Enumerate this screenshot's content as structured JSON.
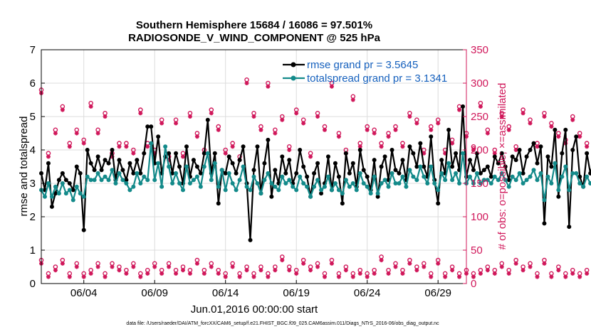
{
  "chart_data": {
    "type": "line",
    "title": "Southern Hemisphere 15684 / 16086 = 97.501%",
    "subtitle": "RADIOSONDE_V_WIND_COMPONENT @ 525 hPa",
    "xlabel": "Jun.01,2016 00:00:00 start",
    "ylabel": "rmse and totalspread",
    "ylabel_right": "# of obs: o=possible; ×=assimilated",
    "footnote": "data file: /Users/raeder/DAI/ATM_forcXX/CAM6_setup/f.e21.FHIST_BGC.f09_025.CAM6assim.011/Diags_NTrS_2016-06/obs_diag_output.nc",
    "x_start": 1,
    "x_step": 0.25,
    "xlim": [
      1,
      31
    ],
    "ylim": [
      0,
      7
    ],
    "y2lim": [
      0,
      350
    ],
    "x_ticks": [
      4,
      9,
      14,
      19,
      24,
      29
    ],
    "x_tick_labels": [
      "06/04",
      "06/09",
      "06/14",
      "06/19",
      "06/24",
      "06/29"
    ],
    "y_ticks": [
      "0",
      "1",
      "2",
      "3",
      "4",
      "5",
      "6",
      "7"
    ],
    "y2_ticks": [
      "0",
      "50",
      "100",
      "150",
      "200",
      "250",
      "300",
      "350"
    ],
    "grid": true,
    "legend_position": "top-right",
    "colors": {
      "rmse": "#000000",
      "spread": "#138a8a",
      "obs": "#d0175a",
      "legend_text": "#1560bd",
      "axis_right": "#d0175a"
    },
    "series": [
      {
        "name": "rmse grand pr = 3.5645",
        "values": [
          3.3,
          2.8,
          3.6,
          2.3,
          2.7,
          3.1,
          3.3,
          3.1,
          3.0,
          2.8,
          3.5,
          3.3,
          1.6,
          4.0,
          3.6,
          3.4,
          3.8,
          3.4,
          3.7,
          3.6,
          4.0,
          3.1,
          3.7,
          3.4,
          3.1,
          3.6,
          3.3,
          3.7,
          3.3,
          3.9,
          4.7,
          4.7,
          3.6,
          4.4,
          3.3,
          3.8,
          3.9,
          3.3,
          3.9,
          3.5,
          3.0,
          4.1,
          3.2,
          3.7,
          3.5,
          3.3,
          3.9,
          4.9,
          3.3,
          3.9,
          2.4,
          3.4,
          3.3,
          3.8,
          3.6,
          3.3,
          3.7,
          4.1,
          3.0,
          1.3,
          3.4,
          4.1,
          2.7,
          3.6,
          4.3,
          2.6,
          3.4,
          3.0,
          3.8,
          3.3,
          3.7,
          3.0,
          3.3,
          4.0,
          3.5,
          3.2,
          2.6,
          3.3,
          3.6,
          2.7,
          3.0,
          3.8,
          2.8,
          3.6,
          3.2,
          2.4,
          3.9,
          3.3,
          3.6,
          2.9,
          4.0,
          3.4,
          3.2,
          2.8,
          3.7,
          2.6,
          3.5,
          3.8,
          3.1,
          4.0,
          3.4,
          3.3,
          3.7,
          3.1,
          4.1,
          3.9,
          3.5,
          4.2,
          3.5,
          3.2,
          4.4,
          3.1,
          2.4,
          3.7,
          3.3,
          4.6,
          3.5,
          3.9,
          3.4,
          5.3,
          3.2,
          3.7,
          3.4,
          3.9,
          3.3,
          3.4,
          3.5,
          3.2,
          3.8,
          3.6,
          3.9,
          3.5,
          3.1,
          3.8,
          3.7,
          4.0,
          3.3,
          3.8,
          4.0,
          4.2,
          3.6,
          4.1,
          1.8,
          3.8,
          3.5,
          4.6,
          2.6,
          3.9,
          4.6,
          1.7,
          4.0,
          4.4,
          3.2,
          2.9,
          3.9,
          3.3,
          3.7,
          3.0,
          3.8,
          3.4,
          2.9,
          3.2,
          3.6,
          2.8,
          3.1,
          3.4,
          3.3,
          3.6,
          2.9,
          2.1
        ]
      },
      {
        "name": "totalspread grand pr = 3.1341",
        "values": [
          2.8,
          2.6,
          3.0,
          2.6,
          2.9,
          2.7,
          3.0,
          2.7,
          2.8,
          2.5,
          2.9,
          2.7,
          2.6,
          3.2,
          3.1,
          3.1,
          3.3,
          3.1,
          3.2,
          3.1,
          3.4,
          3.0,
          3.3,
          3.1,
          3.0,
          2.8,
          2.9,
          3.3,
          3.0,
          3.2,
          3.1,
          4.2,
          3.1,
          3.6,
          2.9,
          4.1,
          3.5,
          3.0,
          3.3,
          3.0,
          2.8,
          3.5,
          3.0,
          3.1,
          3.2,
          2.9,
          3.5,
          3.9,
          3.1,
          3.6,
          2.9,
          3.4,
          2.8,
          3.3,
          3.0,
          2.8,
          3.1,
          3.5,
          2.9,
          2.8,
          3.2,
          3.0,
          2.7,
          3.1,
          3.3,
          3.0,
          2.9,
          2.8,
          3.2,
          3.0,
          3.1,
          2.9,
          2.8,
          3.2,
          3.0,
          2.9,
          2.6,
          2.9,
          3.1,
          2.8,
          2.9,
          3.2,
          2.8,
          3.0,
          2.8,
          2.7,
          3.1,
          2.9,
          3.0,
          2.8,
          3.3,
          3.0,
          2.9,
          2.7,
          3.2,
          2.7,
          3.0,
          3.1,
          2.9,
          3.3,
          3.0,
          3.0,
          3.2,
          2.9,
          3.4,
          3.2,
          3.1,
          3.5,
          3.2,
          3.0,
          3.5,
          3.0,
          2.8,
          3.3,
          3.1,
          3.6,
          3.1,
          3.3,
          3.0,
          3.9,
          3.0,
          3.2,
          3.0,
          3.3,
          3.0,
          3.1,
          3.1,
          3.0,
          3.2,
          3.1,
          3.3,
          3.1,
          2.9,
          3.2,
          3.1,
          3.3,
          3.0,
          3.1,
          3.2,
          3.4,
          3.1,
          3.3,
          2.5,
          3.2,
          3.0,
          3.6,
          2.8,
          3.2,
          3.5,
          2.8,
          3.3,
          3.3,
          3.0,
          2.9,
          3.2,
          3.0,
          3.1,
          2.8,
          3.1,
          2.9,
          2.8,
          2.9,
          3.0,
          2.7,
          2.8,
          2.9,
          2.9,
          3.0,
          2.8,
          2.6
        ]
      }
    ],
    "obs_possible": [
      290,
      225,
      195,
      290,
      230,
      205,
      265,
      230,
      210,
      200,
      230,
      255,
      215,
      225,
      270,
      195,
      230,
      210,
      255,
      270,
      195,
      245,
      210,
      255,
      210,
      260,
      200,
      235,
      260,
      195,
      210,
      240,
      200,
      225,
      245,
      200,
      190,
      230,
      245,
      210,
      195,
      235,
      255,
      205,
      225,
      240,
      200,
      230,
      260,
      195,
      235,
      245,
      200,
      255,
      210,
      300,
      190,
      215,
      305,
      195,
      255,
      210,
      235,
      255,
      300,
      200,
      230,
      210,
      250,
      275,
      205,
      225,
      260,
      200,
      245,
      280,
      195,
      215,
      255,
      200,
      235,
      245,
      300,
      205,
      225,
      255,
      200,
      240,
      280,
      195,
      210,
      260,
      235,
      200,
      230,
      305,
      210,
      245,
      225,
      200,
      235,
      260,
      210,
      230,
      255,
      205,
      245,
      270,
      200,
      215,
      235,
      210,
      245,
      260,
      200,
      230,
      215,
      245,
      265,
      200,
      225,
      235,
      205,
      245,
      270,
      210,
      230,
      240,
      200,
      215,
      255,
      210,
      235,
      245,
      205,
      230,
      260,
      200,
      245,
      225,
      210,
      230,
      255,
      210,
      240,
      200,
      225,
      255,
      215,
      235,
      250,
      205,
      225,
      245,
      210,
      230,
      215,
      240,
      220,
      205,
      230,
      250,
      215,
      240,
      225,
      210,
      245,
      230,
      250,
      220
    ],
    "obs_assimilated": [
      285,
      220,
      190,
      285,
      225,
      200,
      260,
      225,
      205,
      195,
      225,
      250,
      210,
      220,
      265,
      190,
      225,
      205,
      250,
      265,
      190,
      240,
      205,
      250,
      205,
      255,
      195,
      230,
      255,
      190,
      205,
      235,
      195,
      220,
      240,
      195,
      185,
      225,
      240,
      205,
      190,
      230,
      250,
      200,
      220,
      235,
      195,
      225,
      255,
      190,
      230,
      240,
      195,
      250,
      205,
      295,
      185,
      210,
      300,
      190,
      250,
      205,
      230,
      250,
      295,
      195,
      225,
      205,
      245,
      270,
      200,
      220,
      255,
      195,
      240,
      275,
      190,
      210,
      250,
      195,
      230,
      240,
      295,
      200,
      220,
      250,
      195,
      235,
      275,
      190,
      205,
      255,
      230,
      195,
      225,
      300,
      205,
      240,
      220,
      195,
      230,
      255,
      205,
      225,
      250,
      200,
      240,
      265,
      195,
      210,
      230,
      205,
      240,
      255,
      195,
      225,
      210,
      240,
      260,
      195,
      220,
      230,
      200,
      240,
      265,
      205,
      225,
      235,
      195,
      210,
      250,
      205,
      230,
      240,
      200,
      225,
      255,
      195,
      240,
      220,
      205,
      225,
      250,
      205,
      235,
      195,
      220,
      250,
      210,
      230,
      245,
      200,
      220,
      240,
      205,
      225,
      210,
      235,
      215,
      200,
      225,
      245,
      210,
      235,
      220,
      205,
      240,
      225,
      245,
      215
    ],
    "obs_low_possible": [
      35,
      20,
      15,
      30,
      25,
      20,
      35,
      15,
      15,
      20,
      30,
      35,
      15,
      25,
      20,
      15,
      30,
      25,
      15,
      20,
      30,
      15,
      25,
      35,
      20,
      15,
      30,
      25,
      15,
      35,
      20,
      15,
      30,
      25,
      20,
      15,
      30,
      25,
      20,
      15,
      25,
      30,
      20,
      15,
      35,
      25,
      20,
      15,
      30,
      25,
      20,
      40,
      15,
      25,
      30,
      20,
      15,
      35,
      25,
      20,
      15,
      30,
      25,
      20,
      15,
      35,
      25,
      20,
      40,
      15,
      25,
      30,
      20,
      15,
      35,
      20,
      25,
      15,
      30,
      20,
      15,
      25,
      35,
      20,
      15,
      30,
      25,
      20,
      15,
      35,
      20,
      25,
      15,
      30,
      20,
      15,
      40,
      25,
      20,
      15,
      30,
      25,
      20,
      15,
      35,
      20,
      25,
      15,
      30,
      20,
      15,
      25,
      35,
      20,
      15,
      30,
      25,
      20,
      15,
      35,
      20,
      25,
      15,
      30,
      20,
      15,
      25,
      35,
      20,
      15,
      30,
      25,
      20,
      15,
      35,
      20,
      25,
      15,
      30,
      20,
      15,
      25,
      35,
      20,
      15,
      30,
      25,
      20,
      15,
      40,
      20,
      25,
      15,
      30,
      20,
      15,
      25,
      35,
      20,
      15,
      30,
      25,
      20,
      15,
      35,
      20,
      25,
      15,
      45,
      5
    ],
    "obs_low_assimilated": [
      30,
      15,
      10,
      25,
      20,
      15,
      30,
      10,
      10,
      15,
      25,
      30,
      10,
      20,
      15,
      10,
      25,
      20,
      10,
      15,
      25,
      10,
      20,
      30,
      15,
      10,
      25,
      20,
      10,
      30,
      15,
      10,
      25,
      20,
      15,
      10,
      25,
      20,
      15,
      10,
      20,
      25,
      15,
      10,
      30,
      20,
      15,
      10,
      25,
      20,
      15,
      35,
      10,
      20,
      25,
      15,
      10,
      30,
      20,
      15,
      10,
      25,
      20,
      15,
      10,
      30,
      20,
      15,
      35,
      10,
      20,
      25,
      15,
      10,
      30,
      15,
      20,
      10,
      25,
      15,
      10,
      20,
      30,
      15,
      10,
      25,
      20,
      15,
      10,
      30,
      15,
      20,
      10,
      25,
      15,
      10,
      35,
      20,
      15,
      10,
      25,
      20,
      15,
      10,
      30,
      15,
      20,
      10,
      25,
      15,
      10,
      20,
      30,
      15,
      10,
      25,
      20,
      15,
      10,
      30,
      15,
      20,
      10,
      25,
      15,
      10,
      20,
      30,
      15,
      10,
      25,
      20,
      15,
      10,
      30,
      15,
      20,
      10,
      25,
      15,
      10,
      20,
      30,
      15,
      10,
      25,
      20,
      15,
      10,
      35,
      15,
      20,
      10,
      25,
      15,
      10,
      20,
      30,
      15,
      10,
      25,
      20,
      15,
      10,
      30,
      15,
      20,
      10,
      40,
      3
    ]
  }
}
